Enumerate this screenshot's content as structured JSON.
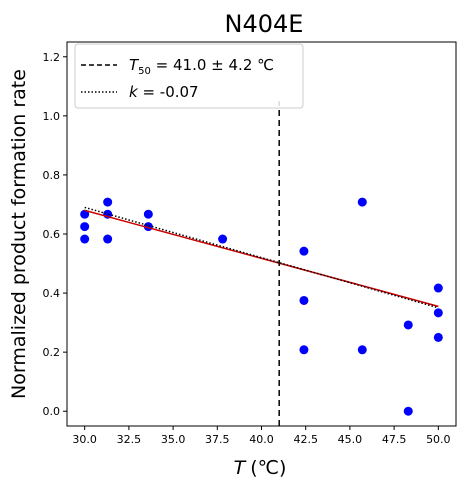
{
  "chart_data": {
    "type": "scatter",
    "title": "N404E",
    "xlabel": "T (℃)",
    "xlabel_var": "T",
    "xlabel_unit": "(℃)",
    "ylabel": "Normalized product formation rate",
    "xlim": [
      29.0,
      51.0
    ],
    "ylim": [
      -0.05,
      1.25
    ],
    "xticks": [
      30.0,
      32.5,
      35.0,
      37.5,
      40.0,
      42.5,
      45.0,
      47.5,
      50.0
    ],
    "xtick_labels": [
      "30.0",
      "32.5",
      "35.0",
      "37.5",
      "40.0",
      "42.5",
      "45.0",
      "47.5",
      "50.0"
    ],
    "yticks": [
      0.0,
      0.2,
      0.4,
      0.6,
      0.8,
      1.0,
      1.2
    ],
    "ytick_labels": [
      "0.0",
      "0.2",
      "0.4",
      "0.6",
      "0.8",
      "1.0",
      "1.2"
    ],
    "points": {
      "color": "#0000ff",
      "x": [
        30.0,
        30.0,
        30.0,
        31.3,
        31.3,
        31.3,
        33.6,
        33.6,
        37.8,
        42.4,
        42.4,
        42.4,
        45.7,
        45.7,
        48.3,
        48.3,
        50.0,
        50.0,
        50.0
      ],
      "y": [
        0.667,
        0.625,
        0.583,
        0.708,
        0.667,
        0.583,
        0.667,
        0.625,
        0.583,
        0.542,
        0.375,
        0.208,
        0.708,
        0.208,
        0.292,
        0.0,
        0.417,
        0.333,
        0.25
      ]
    },
    "fit_line": {
      "color": "#cc0000",
      "x": [
        30.0,
        50.0
      ],
      "y": [
        0.68,
        0.355
      ]
    },
    "k_line": {
      "color": "#000000",
      "style": "dotted",
      "x": [
        30.0,
        50.0
      ],
      "y": [
        0.69,
        0.35
      ]
    },
    "t50_line": {
      "color": "#000000",
      "style": "dashed",
      "x": 41.0,
      "y": [
        -0.05,
        1.05
      ]
    },
    "legend": {
      "position": "upper-left",
      "t50_var": "T",
      "t50_sub": "50",
      "t50_value": " = 41.0 ± 4.2 ℃",
      "k_var": "k",
      "k_value": " = -0.07"
    },
    "grid": false
  }
}
